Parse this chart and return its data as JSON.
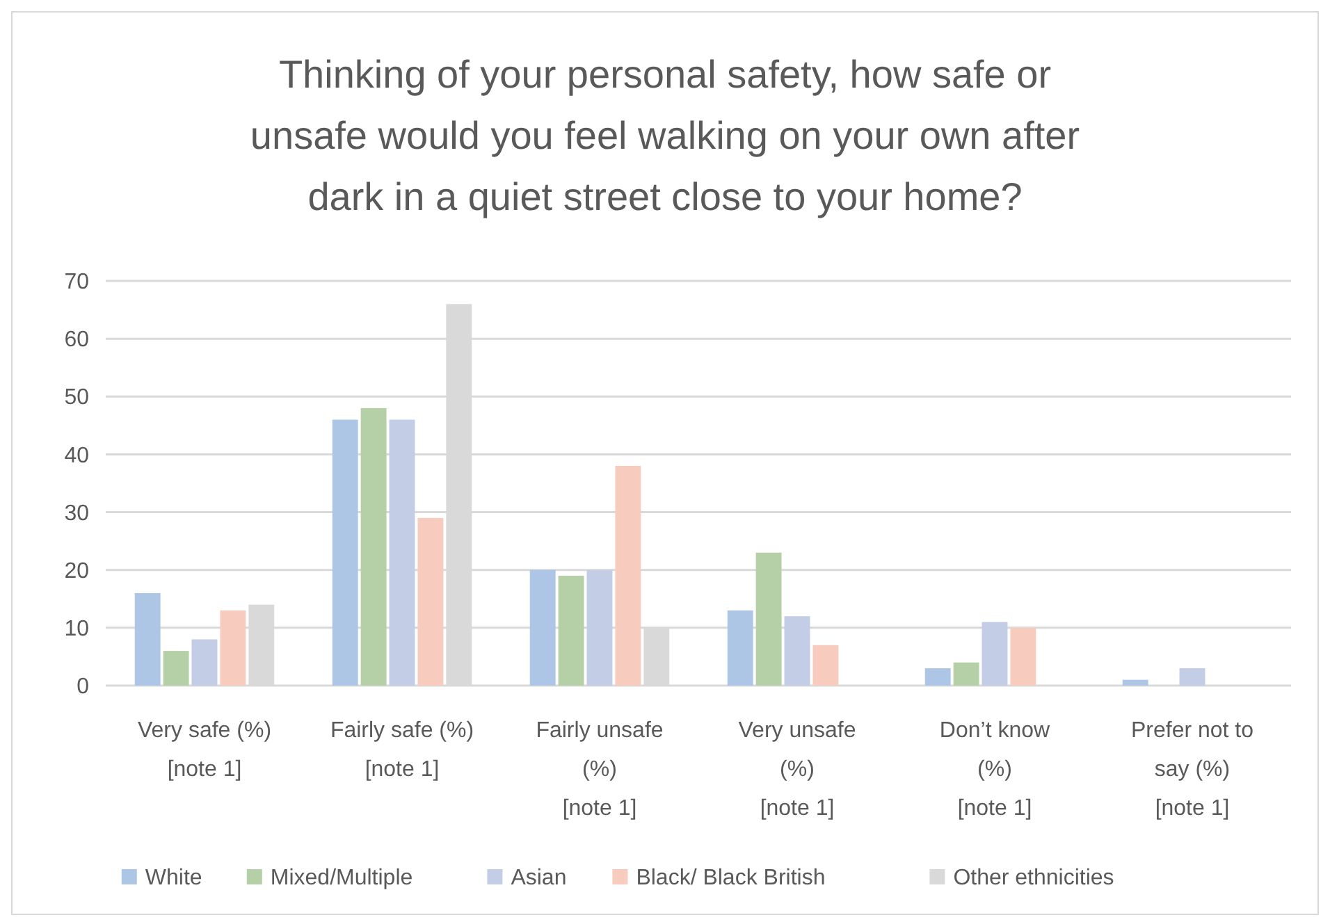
{
  "chart_data": {
    "type": "bar",
    "title": "Thinking of your personal safety, how safe or\nunsafe would you feel walking on your own after\ndark in a quiet street close to your home?",
    "categories": [
      "Very safe (%)\n[note 1]",
      "Fairly safe (%)\n[note 1]",
      "Fairly unsafe\n(%)\n[note 1]",
      "Very unsafe\n(%)\n[note 1]",
      "Don’t know\n(%)\n[note 1]",
      "Prefer not to\nsay (%)\n[note 1]"
    ],
    "series": [
      {
        "name": "White",
        "color": "#aec6e6",
        "values": [
          16,
          46,
          20,
          13,
          3,
          1
        ]
      },
      {
        "name": "Mixed/Multiple",
        "color": "#b5cfa7",
        "values": [
          6,
          48,
          19,
          23,
          4,
          0
        ]
      },
      {
        "name": "Asian",
        "color": "#c3cde6",
        "values": [
          8,
          46,
          20,
          12,
          11,
          3
        ]
      },
      {
        "name": "Black/ Black British",
        "color": "#f7cbbe",
        "values": [
          13,
          29,
          38,
          7,
          10,
          0
        ]
      },
      {
        "name": "Other ethnicities",
        "color": "#d9d9d9",
        "values": [
          14,
          66,
          10,
          0,
          0,
          0
        ]
      }
    ],
    "ylim": [
      0,
      70
    ],
    "yticks": [
      0,
      10,
      20,
      30,
      40,
      50,
      60,
      70
    ],
    "grid": "y",
    "legend": "bottom"
  }
}
